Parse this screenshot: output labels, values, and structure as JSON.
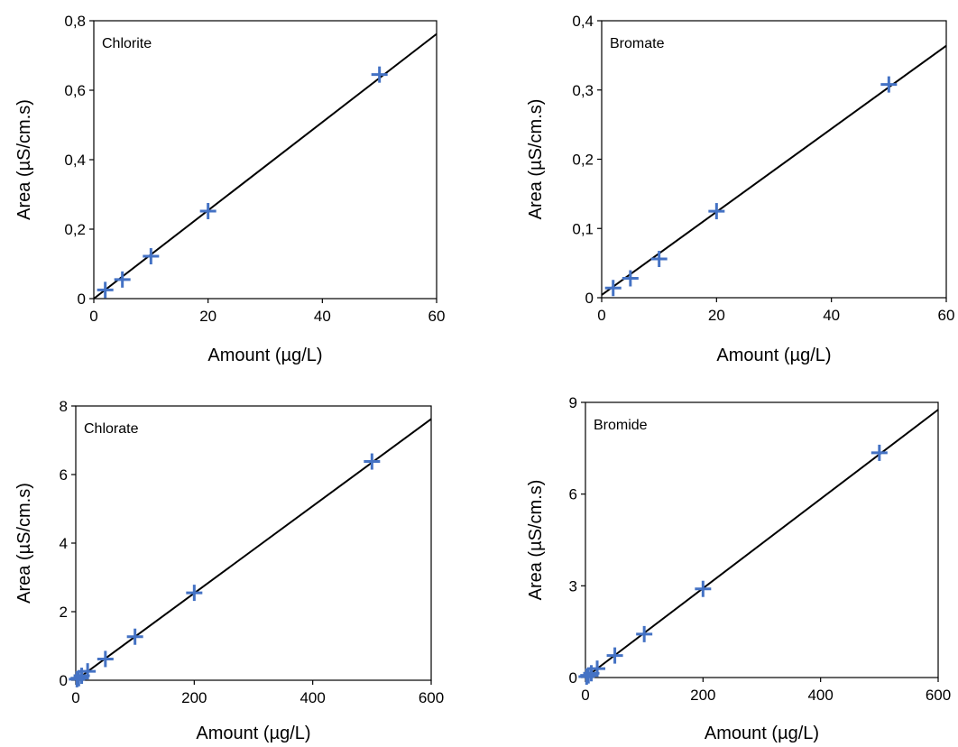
{
  "figure": {
    "background": "#ffffff",
    "marker_color": "#4472C4",
    "line_color": "#000000"
  },
  "chart_data": [
    {
      "type": "scatter",
      "panel_label": "Chlorite",
      "xlabel": "Amount (µg/L)",
      "ylabel": "Area (µS/cm.s)",
      "xlim": [
        0,
        60
      ],
      "ylim": [
        0,
        0.8
      ],
      "xticks": [
        0,
        20,
        40,
        60
      ],
      "xtick_labels": [
        "0",
        "20",
        "40",
        "60"
      ],
      "yticks": [
        0,
        0.2,
        0.4,
        0.6,
        0.8
      ],
      "ytick_labels": [
        "0",
        "0,2",
        "0,4",
        "0,6",
        "0,8"
      ],
      "grid": false,
      "x": [
        2,
        5,
        10,
        20,
        50
      ],
      "y": [
        0.025,
        0.055,
        0.122,
        0.252,
        0.645
      ],
      "trendline": {
        "slope": 0.0127,
        "intercept": 0.0
      }
    },
    {
      "type": "scatter",
      "panel_label": "Bromate",
      "xlabel": "Amount (µg/L)",
      "ylabel": "Area (µS/cm.s)",
      "xlim": [
        0,
        60
      ],
      "ylim": [
        0,
        0.4
      ],
      "xticks": [
        0,
        20,
        40,
        60
      ],
      "xtick_labels": [
        "0",
        "20",
        "40",
        "60"
      ],
      "yticks": [
        0,
        0.1,
        0.2,
        0.3,
        0.4
      ],
      "ytick_labels": [
        "0",
        "0,1",
        "0,2",
        "0,3",
        "0,4"
      ],
      "grid": false,
      "x": [
        2,
        5,
        10,
        20,
        50
      ],
      "y": [
        0.014,
        0.028,
        0.056,
        0.125,
        0.308
      ],
      "trendline": {
        "slope": 0.006,
        "intercept": 0.004
      }
    },
    {
      "type": "scatter",
      "panel_label": "Chlorate",
      "xlabel": "Amount (µg/L)",
      "ylabel": "Area (µS/cm.s)",
      "xlim": [
        0,
        600
      ],
      "ylim": [
        0,
        8
      ],
      "xticks": [
        0,
        200,
        400,
        600
      ],
      "xtick_labels": [
        "0",
        "200",
        "400",
        "600"
      ],
      "yticks": [
        0,
        2,
        4,
        6,
        8
      ],
      "ytick_labels": [
        "0",
        "2",
        "4",
        "6",
        "8"
      ],
      "grid": false,
      "x": [
        2,
        5,
        10,
        20,
        50,
        100,
        200,
        500
      ],
      "y": [
        0.03,
        0.06,
        0.13,
        0.26,
        0.62,
        1.27,
        2.55,
        6.38
      ],
      "trendline": {
        "slope": 0.0127,
        "intercept": 0.0
      }
    },
    {
      "type": "scatter",
      "panel_label": "Bromide",
      "xlabel": "Amount (µg/L)",
      "ylabel": "Area (µS/cm.s)",
      "xlim": [
        0,
        600
      ],
      "ylim": [
        0,
        9
      ],
      "xticks": [
        0,
        200,
        400,
        600
      ],
      "xtick_labels": [
        "0",
        "200",
        "400",
        "600"
      ],
      "yticks": [
        0,
        3,
        6,
        9
      ],
      "ytick_labels": [
        "0",
        "3",
        "6",
        "9"
      ],
      "grid": false,
      "x": [
        2,
        5,
        10,
        20,
        50,
        100,
        200,
        500
      ],
      "y": [
        0.03,
        0.07,
        0.14,
        0.29,
        0.72,
        1.42,
        2.9,
        7.35
      ],
      "trendline": {
        "slope": 0.0146,
        "intercept": 0.0
      }
    }
  ]
}
